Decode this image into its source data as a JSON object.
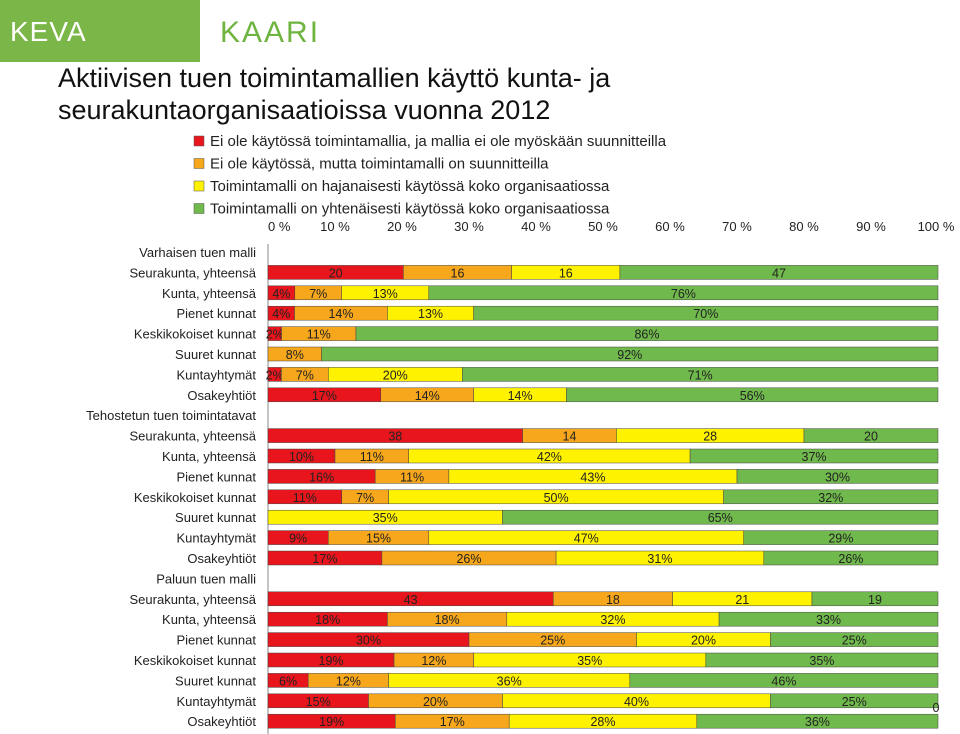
{
  "logo": {
    "left": "KEVA",
    "right": "KAARI"
  },
  "title": "Aktiivisen tuen toimintamallien käyttö kunta- ja seurakuntaorganisaatioissa vuonna 2012",
  "colors": {
    "red": "#e8161c",
    "orange": "#f7a71b",
    "yellow": "#fff200",
    "green": "#70b94c"
  },
  "chart_data": {
    "type": "bar",
    "orientation": "horizontal",
    "stacked": true,
    "xlim": [
      0,
      100
    ],
    "x_ticks": [
      "0 %",
      "10 %",
      "20 %",
      "30 %",
      "40 %",
      "50 %",
      "60 %",
      "70 %",
      "80 %",
      "90 %",
      "100 %"
    ],
    "legend_position": "top",
    "series": [
      {
        "name": "Ei ole käytössä toimintamallia, ja mallia ei ole myöskään suunnitteilla",
        "color": "#e8161c"
      },
      {
        "name": "Ei ole käytössä, mutta toimintamalli on suunnitteilla",
        "color": "#f7a71b"
      },
      {
        "name": "Toimintamalli on hajanaisesti käytössä koko organisaatiossa",
        "color": "#fff200"
      },
      {
        "name": "Toimintamalli on yhtenäisesti käytössä koko organisaatiossa",
        "color": "#70b94c"
      }
    ],
    "groups": [
      {
        "name": "Varhaisen tuen malli",
        "rows": [
          {
            "category": "Seurakunta, yhteensä",
            "values": [
              20,
              16,
              16,
              47
            ],
            "labels": [
              "20",
              "16",
              "16",
              "47"
            ]
          },
          {
            "category": "Kunta, yhteensä",
            "values": [
              4,
              7,
              13,
              76
            ],
            "labels": [
              "4%",
              "7%",
              "13%",
              "76%"
            ]
          },
          {
            "category": "Pienet kunnat",
            "values": [
              4,
              14,
              13,
              70
            ],
            "labels": [
              "4%",
              "14%",
              "13%",
              "70%"
            ]
          },
          {
            "category": "Keskikokoiset kunnat",
            "values": [
              2,
              11,
              0,
              86
            ],
            "labels": [
              "2%",
              "11%",
              "",
              "86%"
            ]
          },
          {
            "category": "Suuret kunnat",
            "values": [
              0,
              8,
              0,
              92
            ],
            "labels": [
              "",
              "8%",
              "",
              "92%"
            ]
          },
          {
            "category": "Kuntayhtymät",
            "values": [
              2,
              7,
              20,
              71
            ],
            "labels": [
              "2%",
              "7%",
              "20%",
              "71%"
            ]
          },
          {
            "category": "Osakeyhtiöt",
            "values": [
              17,
              14,
              14,
              56
            ],
            "labels": [
              "17%",
              "14%",
              "14%",
              "56%"
            ]
          }
        ]
      },
      {
        "name": "Tehostetun tuen toimintatavat",
        "rows": [
          {
            "category": "Seurakunta, yhteensä",
            "values": [
              38,
              14,
              28,
              20
            ],
            "labels": [
              "38",
              "14",
              "28",
              "20"
            ]
          },
          {
            "category": "Kunta, yhteensä",
            "values": [
              10,
              11,
              42,
              37
            ],
            "labels": [
              "10%",
              "11%",
              "42%",
              "37%"
            ]
          },
          {
            "category": "Pienet kunnat",
            "values": [
              16,
              11,
              43,
              30
            ],
            "labels": [
              "16%",
              "11%",
              "43%",
              "30%"
            ]
          },
          {
            "category": "Keskikokoiset kunnat",
            "values": [
              11,
              7,
              50,
              32
            ],
            "labels": [
              "11%",
              "7%",
              "50%",
              "32%"
            ]
          },
          {
            "category": "Suuret kunnat",
            "values": [
              0,
              0,
              35,
              65
            ],
            "labels": [
              "",
              "",
              "35%",
              "65%"
            ]
          },
          {
            "category": "Kuntayhtymät",
            "values": [
              9,
              15,
              47,
              29
            ],
            "labels": [
              "9%",
              "15%",
              "47%",
              "29%"
            ]
          },
          {
            "category": "Osakeyhtiöt",
            "values": [
              17,
              26,
              31,
              26
            ],
            "labels": [
              "17%",
              "26%",
              "31%",
              "26%"
            ]
          }
        ]
      },
      {
        "name": "Paluun tuen malli",
        "rows": [
          {
            "category": "Seurakunta, yhteensä",
            "values": [
              43,
              18,
              21,
              19
            ],
            "labels": [
              "43",
              "18",
              "21",
              "19"
            ]
          },
          {
            "category": "Kunta, yhteensä",
            "values": [
              18,
              18,
              32,
              33
            ],
            "labels": [
              "18%",
              "18%",
              "32%",
              "33%"
            ]
          },
          {
            "category": "Pienet kunnat",
            "values": [
              30,
              25,
              20,
              25
            ],
            "labels": [
              "30%",
              "25%",
              "20%",
              "25%"
            ]
          },
          {
            "category": "Keskikokoiset kunnat",
            "values": [
              19,
              12,
              35,
              35
            ],
            "labels": [
              "19%",
              "12%",
              "35%",
              "35%"
            ]
          },
          {
            "category": "Suuret kunnat",
            "values": [
              6,
              12,
              36,
              46
            ],
            "labels": [
              "6%",
              "12%",
              "36%",
              "46%"
            ]
          },
          {
            "category": "Kuntayhtymät",
            "values": [
              15,
              20,
              40,
              25
            ],
            "labels": [
              "15%",
              "20%",
              "40%",
              "25%"
            ]
          },
          {
            "category": "Osakeyhtiöt",
            "values": [
              19,
              17,
              28,
              36
            ],
            "labels": [
              "19%",
              "17%",
              "28%",
              "36%"
            ]
          }
        ]
      }
    ],
    "annotations": [
      "0"
    ]
  }
}
